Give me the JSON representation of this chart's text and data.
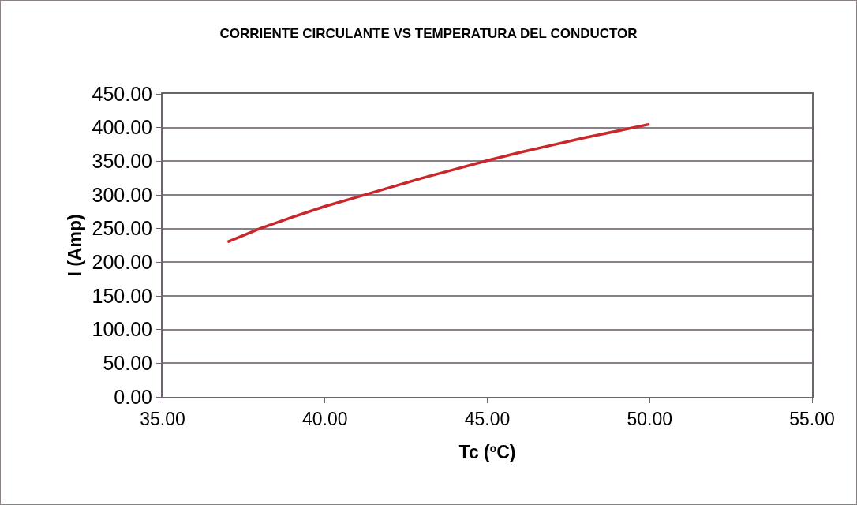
{
  "chart_data": {
    "type": "line",
    "title": "CORRIENTE CIRCULANTE VS TEMPERATURA DEL CONDUCTOR",
    "xlabel": "Tc (ºC)",
    "ylabel": "I (Amp)",
    "x": [
      37,
      38,
      39,
      40,
      41,
      42,
      43,
      44,
      45,
      46,
      47,
      48,
      49,
      50
    ],
    "series": [
      {
        "color": "#c8282c",
        "values": [
          230,
          250,
          267,
          283,
          297,
          311,
          325,
          338,
          351,
          363,
          374,
          385,
          395,
          405
        ]
      }
    ],
    "xlim": [
      35,
      55
    ],
    "xticks": [
      {
        "value": 35,
        "label": "35.00"
      },
      {
        "value": 40,
        "label": "40.00"
      },
      {
        "value": 45,
        "label": "45.00"
      },
      {
        "value": 50,
        "label": "50.00"
      },
      {
        "value": 55,
        "label": "55.00"
      }
    ],
    "ylim": [
      0,
      450
    ],
    "yticks": [
      {
        "value": 0,
        "label": "0.00"
      },
      {
        "value": 50,
        "label": "50.00"
      },
      {
        "value": 100,
        "label": "100.00"
      },
      {
        "value": 150,
        "label": "150.00"
      },
      {
        "value": 200,
        "label": "200.00"
      },
      {
        "value": 250,
        "label": "250.00"
      },
      {
        "value": 300,
        "label": "300.00"
      },
      {
        "value": 350,
        "label": "350.00"
      },
      {
        "value": 400,
        "label": "400.00"
      },
      {
        "value": 450,
        "label": "450.00"
      }
    ],
    "grid": "y",
    "marker": "none",
    "line_style": "solid"
  }
}
